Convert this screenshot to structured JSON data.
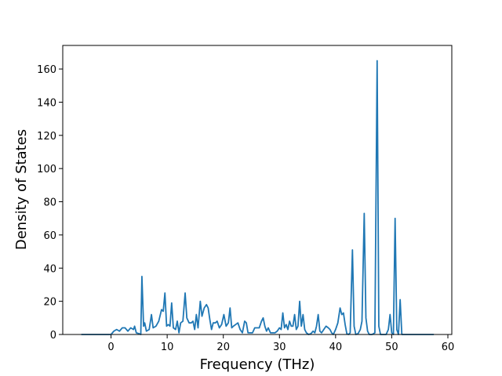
{
  "chart_data": {
    "type": "line",
    "xlabel": "Frequency (THz)",
    "ylabel": "Density of States",
    "x": [
      -5.3,
      -0.5,
      0,
      0.5,
      1,
      1.5,
      2,
      2.5,
      3,
      3.5,
      4,
      4.2,
      4.5,
      5,
      5.3,
      5.5,
      5.8,
      6,
      6.3,
      6.8,
      7.2,
      7.5,
      8,
      8.5,
      9,
      9.3,
      9.6,
      9.9,
      10.2,
      10.5,
      10.8,
      11.1,
      11.5,
      11.8,
      12.1,
      12.4,
      12.8,
      13.2,
      13.5,
      13.9,
      14.3,
      14.6,
      14.9,
      15.2,
      15.5,
      15.9,
      16.2,
      16.6,
      17,
      17.3,
      17.6,
      17.9,
      18.2,
      18.6,
      18.9,
      19.3,
      19.7,
      20.1,
      20.5,
      20.9,
      21.2,
      21.5,
      21.8,
      22.2,
      22.6,
      23,
      23.4,
      23.8,
      24.1,
      24.4,
      24.8,
      25.2,
      25.6,
      26,
      26.4,
      26.8,
      27.1,
      27.4,
      27.7,
      28,
      28.4,
      28.8,
      29.2,
      29.6,
      30,
      30.3,
      30.6,
      30.9,
      31.2,
      31.5,
      31.8,
      32.1,
      32.4,
      32.7,
      33,
      33.3,
      33.6,
      33.9,
      34.2,
      34.5,
      34.8,
      35.2,
      35.6,
      36,
      36.3,
      36.6,
      36.9,
      37.2,
      37.5,
      37.9,
      38.3,
      38.7,
      39,
      39.3,
      39.6,
      40,
      40.4,
      40.8,
      41.1,
      41.4,
      41.7,
      42,
      42.3,
      42.6,
      43,
      43.3,
      43.6,
      44,
      44.4,
      44.7,
      45.1,
      45.4,
      45.7,
      46,
      46.5,
      47,
      47.4,
      47.7,
      48,
      48.5,
      49,
      49.4,
      49.7,
      50,
      50.3,
      50.6,
      50.9,
      51.2,
      51.5,
      51.8,
      52.3,
      57.5
    ],
    "values": [
      0,
      0,
      0,
      2,
      3,
      2,
      4,
      4,
      2,
      4,
      3,
      5,
      1,
      0.5,
      0,
      35,
      5,
      7,
      2,
      3,
      12,
      4,
      5,
      8,
      15,
      14,
      25,
      5,
      6,
      5,
      19,
      4,
      3,
      8,
      1,
      7,
      8,
      25,
      10,
      7,
      7,
      8,
      3,
      12,
      4,
      20,
      11,
      16,
      18,
      16,
      9,
      3,
      7,
      7,
      8,
      4,
      6,
      12,
      5,
      7,
      16,
      4,
      5,
      6,
      7,
      3,
      1,
      8,
      7,
      1,
      1,
      1,
      4,
      4,
      4,
      8,
      10,
      5,
      2,
      4,
      1,
      1,
      1,
      2,
      4,
      3,
      13,
      4,
      6,
      3,
      8,
      5,
      5,
      12,
      3,
      5,
      20,
      5,
      12,
      3,
      1,
      0,
      0.5,
      2,
      1,
      5,
      12,
      2,
      1,
      3,
      5,
      4,
      3,
      1,
      0,
      3,
      7,
      16,
      12,
      13,
      6,
      0.5,
      0,
      1,
      51,
      5,
      0,
      0.5,
      3,
      8,
      73,
      10,
      2,
      0,
      0,
      1,
      165,
      5,
      0,
      0,
      0,
      3,
      12,
      1,
      0,
      70,
      3,
      0,
      21,
      0,
      0,
      0
    ],
    "color": "#1f77b4",
    "xlim": [
      -8.6,
      60.7
    ],
    "ylim": [
      0,
      174.2
    ],
    "xticks": [
      0,
      10,
      20,
      30,
      40,
      50,
      60
    ],
    "yticks": [
      0,
      20,
      40,
      60,
      80,
      100,
      120,
      140,
      160
    ]
  }
}
